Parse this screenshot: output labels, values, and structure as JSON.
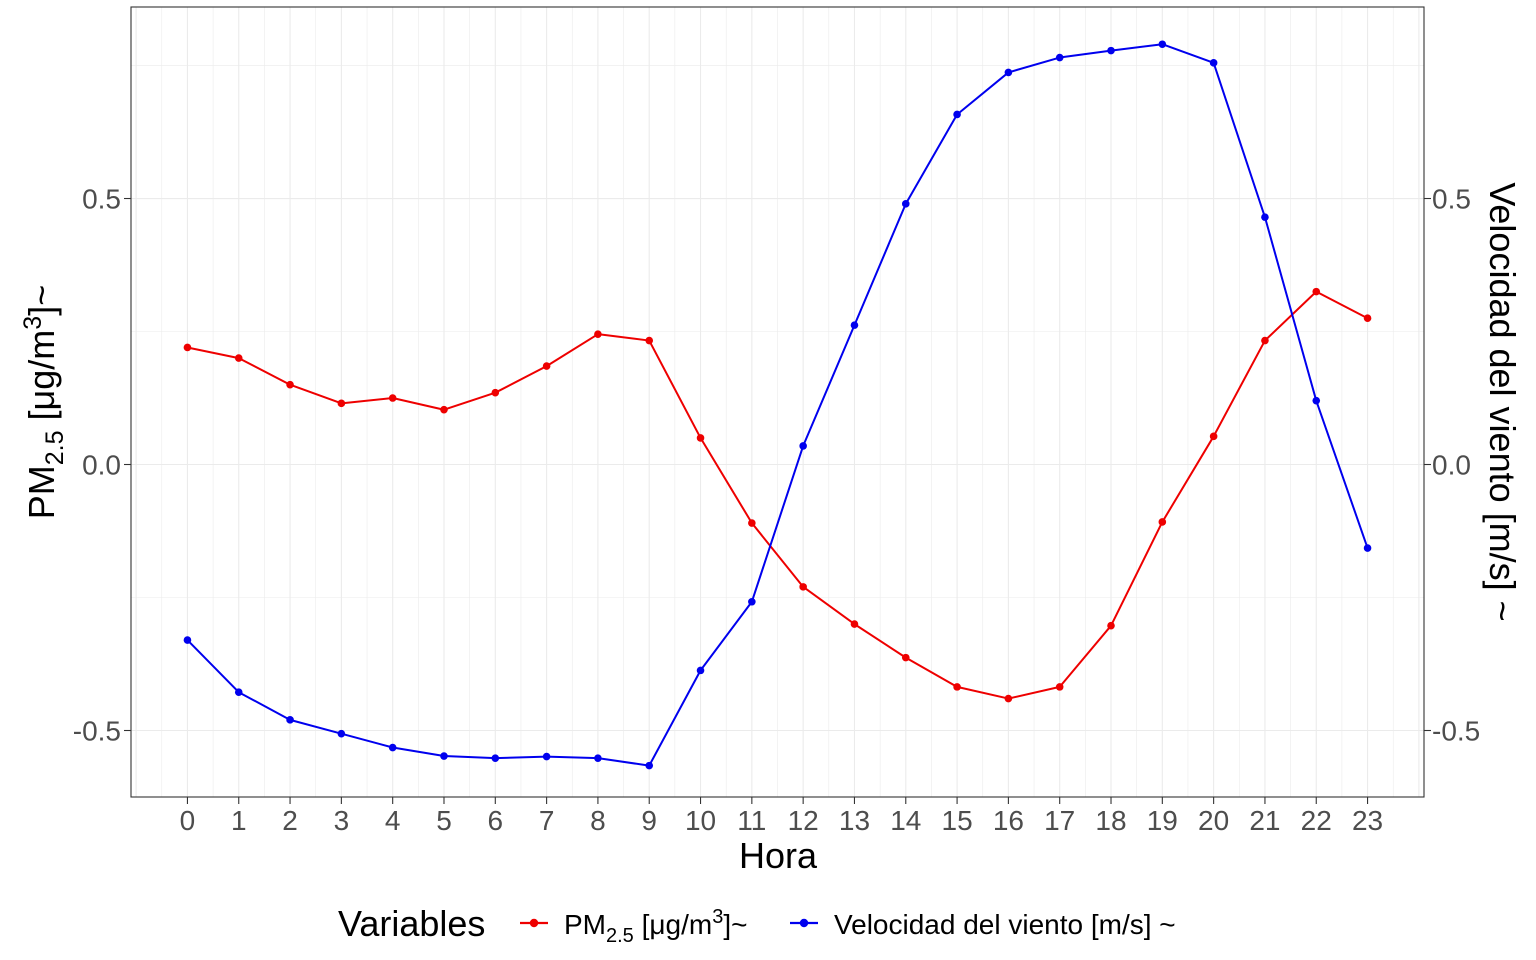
{
  "chart_data": {
    "type": "line",
    "xlabel": "Hora",
    "ylabel_left": {
      "main": "PM",
      "sub": "2.5",
      "unit_open": " [μg/m",
      "sup": "3",
      "unit_close": "]~"
    },
    "ylabel_right": "Velocidad del viento [m/s] ~",
    "x": [
      0,
      1,
      2,
      3,
      4,
      5,
      6,
      7,
      8,
      9,
      10,
      11,
      12,
      13,
      14,
      15,
      16,
      17,
      18,
      19,
      20,
      21,
      22,
      23
    ],
    "x_tick_labels": [
      "0",
      "1",
      "2",
      "3",
      "4",
      "5",
      "6",
      "7",
      "8",
      "9",
      "10",
      "11",
      "12",
      "13",
      "14",
      "15",
      "16",
      "17",
      "18",
      "19",
      "20",
      "21",
      "22",
      "23"
    ],
    "xlim": [
      -1.1,
      24.1
    ],
    "ylim": [
      -0.625,
      0.86
    ],
    "y_ticks": [
      -0.5,
      0.0,
      0.5
    ],
    "y_tick_labels": [
      "-0.5",
      "0.0",
      "0.5"
    ],
    "y_right_ticks": [
      -0.5,
      0.0,
      0.5
    ],
    "y_right_tick_labels": [
      "-0.5",
      "0.0",
      "0.5"
    ],
    "grid": true,
    "legend": {
      "position": "bottom",
      "title": "Variables",
      "entries": [
        {
          "main": "PM",
          "sub": "2.5",
          "unit_open": " [μg/m",
          "sup": "3",
          "unit_close": "]~"
        },
        {
          "label": "Velocidad del viento [m/s] ~"
        }
      ]
    },
    "series": [
      {
        "color": "#ee0000",
        "values": [
          0.22,
          0.2,
          0.15,
          0.115,
          0.125,
          0.103,
          0.135,
          0.185,
          0.245,
          0.233,
          0.05,
          -0.11,
          -0.23,
          -0.3,
          -0.363,
          -0.418,
          -0.44,
          -0.418,
          -0.303,
          -0.108,
          0.053,
          0.233,
          0.325,
          0.275
        ]
      },
      {
        "color": "#0000ee",
        "values": [
          -0.33,
          -0.428,
          -0.48,
          -0.506,
          -0.532,
          -0.548,
          -0.552,
          -0.549,
          -0.552,
          -0.566,
          -0.387,
          -0.258,
          0.035,
          0.262,
          0.49,
          0.658,
          0.737,
          0.765,
          0.778,
          0.79,
          0.755,
          0.465,
          0.12,
          -0.157
        ]
      }
    ]
  }
}
